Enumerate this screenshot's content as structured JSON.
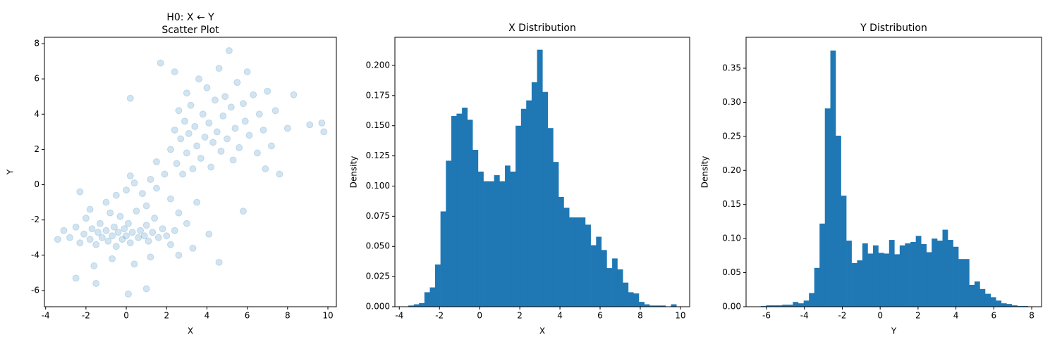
{
  "chart_data": [
    {
      "type": "scatter",
      "title": [
        "H0: X ← Y",
        "Scatter Plot"
      ],
      "x_label": "X",
      "y_label": "Y",
      "color": "#1f77b4",
      "alpha": 0.2,
      "xlim": [
        -4.06,
        10.42
      ],
      "ylim": [
        -6.92,
        8.36
      ],
      "xticks": [
        -4,
        -2,
        0,
        2,
        4,
        6,
        8,
        10
      ],
      "yticks": [
        -6,
        -4,
        -2,
        0,
        2,
        4,
        6,
        8
      ],
      "x": [
        -3.4,
        -3.1,
        -2.8,
        -2.5,
        -2.3,
        -2.1,
        -2.0,
        -1.8,
        -1.7,
        -1.5,
        -1.4,
        -1.3,
        -1.2,
        -1.0,
        -0.9,
        -0.8,
        -0.7,
        -0.6,
        -0.5,
        -0.4,
        -0.3,
        -0.2,
        -0.1,
        0.0,
        0.1,
        0.2,
        0.3,
        0.5,
        0.6,
        0.7,
        0.9,
        1.0,
        1.1,
        1.3,
        1.4,
        1.6,
        1.8,
        2.0,
        2.2,
        2.4,
        -1.6,
        -0.7,
        0.4,
        1.2,
        -2.5,
        0.1,
        1.0,
        -1.5,
        2.6,
        3.3,
        -1.0,
        -0.5,
        0.0,
        0.4,
        0.8,
        1.2,
        1.5,
        1.9,
        2.2,
        -1.8,
        -2.3,
        0.2,
        1.0,
        2.6,
        3.0,
        3.5,
        4.1,
        4.6,
        0.2,
        1.5,
        2.2,
        2.4,
        2.5,
        2.6,
        2.7,
        2.8,
        2.9,
        3.0,
        3.0,
        3.1,
        3.2,
        3.3,
        3.4,
        3.5,
        3.6,
        3.7,
        3.8,
        3.9,
        4.0,
        4.1,
        4.2,
        4.3,
        4.4,
        4.5,
        4.6,
        4.7,
        4.8,
        4.9,
        5.0,
        5.1,
        5.2,
        5.3,
        5.4,
        5.5,
        5.6,
        5.8,
        5.9,
        6.0,
        6.1,
        6.3,
        6.5,
        6.6,
        6.8,
        7.0,
        7.2,
        7.4,
        7.6,
        8.0,
        8.3,
        9.1,
        9.7,
        9.8,
        1.7,
        2.4,
        5.8,
        6.9
      ],
      "y": [
        -3.1,
        -2.6,
        -3.0,
        -2.4,
        -3.3,
        -2.8,
        -1.9,
        -3.1,
        -2.5,
        -3.4,
        -2.7,
        -2.2,
        -3.0,
        -2.6,
        -3.2,
        -1.6,
        -2.9,
        -2.4,
        -3.5,
        -2.7,
        -1.8,
        -3.1,
        -2.5,
        -2.9,
        -2.2,
        -3.3,
        -2.7,
        -1.5,
        -3.0,
        -2.6,
        -2.9,
        -2.3,
        -3.2,
        -2.7,
        -1.9,
        -3.0,
        -2.5,
        -2.9,
        -3.4,
        -2.6,
        -4.6,
        -4.2,
        -4.5,
        -4.1,
        -5.3,
        -6.2,
        -5.9,
        -5.6,
        -4.0,
        -3.6,
        -1.0,
        -0.6,
        -0.3,
        0.1,
        -0.5,
        0.3,
        -0.2,
        0.6,
        -0.8,
        -1.4,
        -0.4,
        0.5,
        -1.2,
        -1.6,
        -2.2,
        -1.0,
        -2.8,
        -4.4,
        4.9,
        1.3,
        2.0,
        3.1,
        1.2,
        4.2,
        2.6,
        0.6,
        3.6,
        1.8,
        5.2,
        2.9,
        4.5,
        0.9,
        3.3,
        2.2,
        6.0,
        1.5,
        4.0,
        2.7,
        5.5,
        3.5,
        1.0,
        2.4,
        4.8,
        3.0,
        6.6,
        1.9,
        3.9,
        5.0,
        2.6,
        7.6,
        4.4,
        1.4,
        3.2,
        5.8,
        2.1,
        4.6,
        3.6,
        6.4,
        2.8,
        5.1,
        1.8,
        4.0,
        3.1,
        5.3,
        2.2,
        4.2,
        0.6,
        3.2,
        5.1,
        3.4,
        3.5,
        3.0,
        6.9,
        6.4,
        -1.5,
        0.9
      ]
    },
    {
      "type": "histogram",
      "title": "X Distribution",
      "x_label": "X",
      "y_label": "Density",
      "color": "#1f77b4",
      "xlim": [
        -4.22,
        10.46
      ],
      "ylim": [
        0,
        0.2233
      ],
      "xticks": [
        -4,
        -2,
        0,
        2,
        4,
        6,
        8,
        10
      ],
      "yticks": [
        {
          "value": 0,
          "label": "0.000"
        },
        {
          "value": 0.025,
          "label": "0.025"
        },
        {
          "value": 0.05,
          "label": "0.050"
        },
        {
          "value": 0.075,
          "label": "0.075"
        },
        {
          "value": 0.1,
          "label": "0.100"
        },
        {
          "value": 0.125,
          "label": "0.125"
        },
        {
          "value": 0.15,
          "label": "0.150"
        },
        {
          "value": 0.175,
          "label": "0.175"
        },
        {
          "value": 0.2,
          "label": "0.200"
        }
      ],
      "bins": [
        -3.55,
        -3.28,
        -3.02,
        -2.75,
        -2.48,
        -2.22,
        -1.95,
        -1.68,
        -1.41,
        -1.15,
        -0.88,
        -0.61,
        -0.35,
        -0.08,
        0.19,
        0.46,
        0.72,
        0.99,
        1.26,
        1.52,
        1.79,
        2.06,
        2.32,
        2.59,
        2.86,
        3.13,
        3.39,
        3.66,
        3.93,
        4.19,
        4.46,
        4.73,
        4.99,
        5.26,
        5.53,
        5.8,
        6.06,
        6.33,
        6.6,
        6.86,
        7.13,
        7.4,
        7.66,
        7.93,
        8.2,
        8.46,
        8.73,
        9.0,
        9.26,
        9.53,
        9.8
      ],
      "values": [
        0.001,
        0.002,
        0.003,
        0.012,
        0.016,
        0.035,
        0.079,
        0.121,
        0.158,
        0.16,
        0.165,
        0.155,
        0.13,
        0.112,
        0.104,
        0.104,
        0.109,
        0.104,
        0.117,
        0.112,
        0.15,
        0.164,
        0.171,
        0.186,
        0.213,
        0.178,
        0.148,
        0.12,
        0.091,
        0.082,
        0.074,
        0.074,
        0.074,
        0.068,
        0.051,
        0.058,
        0.047,
        0.032,
        0.04,
        0.031,
        0.02,
        0.012,
        0.011,
        0.004,
        0.002,
        0.001,
        0.001,
        0.001,
        0,
        0.002
      ]
    },
    {
      "type": "histogram",
      "title": "Y Distribution",
      "x_label": "Y",
      "y_label": "Density",
      "color": "#1f77b4",
      "xlim": [
        -7.08,
        8.52
      ],
      "ylim": [
        0,
        0.3954
      ],
      "xticks": [
        -6,
        -4,
        -2,
        0,
        2,
        4,
        6,
        8
      ],
      "yticks": [
        {
          "value": 0,
          "label": "0.00"
        },
        {
          "value": 0.05,
          "label": "0.05"
        },
        {
          "value": 0.1,
          "label": "0.10"
        },
        {
          "value": 0.15,
          "label": "0.15"
        },
        {
          "value": 0.2,
          "label": "0.20"
        },
        {
          "value": 0.25,
          "label": "0.25"
        },
        {
          "value": 0.3,
          "label": "0.30"
        },
        {
          "value": 0.35,
          "label": "0.35"
        }
      ],
      "bins": [
        -6.3,
        -6.02,
        -5.74,
        -5.45,
        -5.17,
        -4.89,
        -4.61,
        -4.33,
        -4.04,
        -3.76,
        -3.48,
        -3.2,
        -2.92,
        -2.63,
        -2.35,
        -2.07,
        -1.79,
        -1.51,
        -1.22,
        -0.94,
        -0.66,
        -0.38,
        -0.1,
        0.19,
        0.47,
        0.75,
        1.03,
        1.31,
        1.6,
        1.88,
        2.16,
        2.44,
        2.72,
        3.01,
        3.29,
        3.57,
        3.85,
        4.13,
        4.42,
        4.7,
        4.98,
        5.26,
        5.54,
        5.83,
        6.11,
        6.39,
        6.67,
        6.95,
        7.24,
        7.52,
        7.8
      ],
      "values": [
        0.001,
        0.002,
        0.002,
        0.002,
        0.003,
        0.003,
        0.007,
        0.005,
        0.009,
        0.02,
        0.057,
        0.122,
        0.291,
        0.376,
        0.251,
        0.163,
        0.097,
        0.064,
        0.068,
        0.093,
        0.078,
        0.09,
        0.079,
        0.078,
        0.098,
        0.077,
        0.09,
        0.093,
        0.095,
        0.104,
        0.092,
        0.08,
        0.1,
        0.097,
        0.113,
        0.098,
        0.088,
        0.07,
        0.07,
        0.032,
        0.037,
        0.026,
        0.019,
        0.014,
        0.009,
        0.005,
        0.004,
        0.002,
        0.001,
        0.001
      ]
    }
  ]
}
